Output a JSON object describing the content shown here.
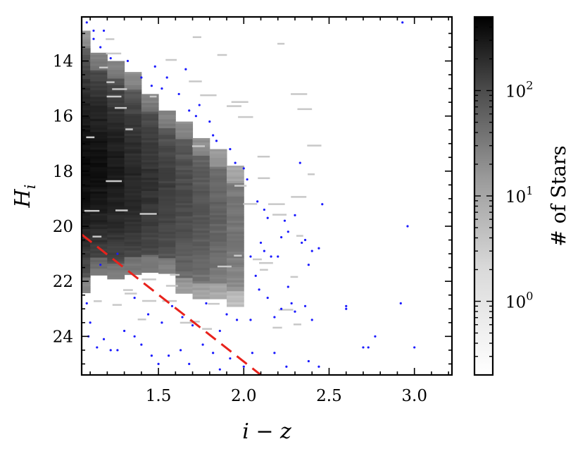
{
  "chart_data": {
    "type": "heatmap",
    "title": "",
    "xlabel": "i − z",
    "ylabel": "H",
    "ylabel_subscript": "i",
    "xlim": [
      1.05,
      3.22
    ],
    "ylim": [
      25.4,
      12.4
    ],
    "y_inverted": true,
    "x_ticks": [
      "1.5",
      "2.0",
      "2.5",
      "3.0"
    ],
    "x_tick_values": [
      1.5,
      2.0,
      2.5,
      3.0
    ],
    "y_ticks": [
      "14",
      "16",
      "18",
      "20",
      "22",
      "24"
    ],
    "y_tick_values": [
      14,
      16,
      18,
      20,
      22,
      24
    ],
    "colormap": "greys",
    "colorbar": {
      "label": "# of Stars",
      "scale": "log",
      "range": [
        0.2,
        500
      ],
      "ticks": [
        {
          "value": 1,
          "base": "10",
          "exp": "0"
        },
        {
          "value": 10,
          "base": "10",
          "exp": "1"
        },
        {
          "value": 100,
          "base": "10",
          "exp": "2"
        }
      ]
    },
    "density_columns": [
      {
        "x0": 1.05,
        "x1": 1.1,
        "ymin": 12.9,
        "ymax": 22.4,
        "peak_y": 17.8,
        "peak": 400
      },
      {
        "x0": 1.1,
        "x1": 1.2,
        "ymin": 13.7,
        "ymax": 21.7,
        "peak_y": 17.8,
        "peak": 320
      },
      {
        "x0": 1.2,
        "x1": 1.3,
        "ymin": 14.0,
        "ymax": 21.9,
        "peak_y": 18.0,
        "peak": 240
      },
      {
        "x0": 1.3,
        "x1": 1.4,
        "ymin": 14.4,
        "ymax": 21.7,
        "peak_y": 18.3,
        "peak": 170
      },
      {
        "x0": 1.4,
        "x1": 1.5,
        "ymin": 15.2,
        "ymax": 21.6,
        "peak_y": 18.5,
        "peak": 120
      },
      {
        "x0": 1.5,
        "x1": 1.6,
        "ymin": 15.8,
        "ymax": 21.7,
        "peak_y": 18.8,
        "peak": 80
      },
      {
        "x0": 1.6,
        "x1": 1.7,
        "ymin": 16.2,
        "ymax": 22.4,
        "peak_y": 19.0,
        "peak": 55
      },
      {
        "x0": 1.7,
        "x1": 1.8,
        "ymin": 16.8,
        "ymax": 22.6,
        "peak_y": 19.3,
        "peak": 38
      },
      {
        "x0": 1.8,
        "x1": 1.9,
        "ymin": 17.2,
        "ymax": 22.6,
        "peak_y": 19.5,
        "peak": 25
      },
      {
        "x0": 1.9,
        "x1": 2.0,
        "ymin": 17.8,
        "ymax": 22.9,
        "peak_y": 19.8,
        "peak": 14
      }
    ],
    "outliers": [
      [
        1.08,
        12.6
      ],
      [
        1.12,
        12.9
      ],
      [
        1.18,
        12.9
      ],
      [
        1.12,
        13.2
      ],
      [
        1.16,
        13.5
      ],
      [
        1.22,
        13.9
      ],
      [
        1.32,
        14.0
      ],
      [
        1.4,
        14.6
      ],
      [
        1.46,
        14.9
      ],
      [
        1.48,
        14.2
      ],
      [
        1.55,
        14.6
      ],
      [
        1.52,
        15.0
      ],
      [
        1.62,
        15.2
      ],
      [
        1.66,
        14.3
      ],
      [
        1.68,
        15.8
      ],
      [
        1.72,
        16.0
      ],
      [
        1.74,
        15.6
      ],
      [
        1.8,
        16.2
      ],
      [
        1.82,
        16.7
      ],
      [
        1.84,
        16.9
      ],
      [
        1.92,
        17.2
      ],
      [
        1.95,
        17.7
      ],
      [
        2.0,
        17.9
      ],
      [
        2.02,
        18.3
      ],
      [
        2.08,
        19.1
      ],
      [
        2.12,
        19.4
      ],
      [
        2.14,
        19.7
      ],
      [
        2.1,
        20.6
      ],
      [
        2.12,
        20.9
      ],
      [
        2.16,
        21.1
      ],
      [
        2.2,
        21.1
      ],
      [
        2.22,
        20.4
      ],
      [
        2.24,
        19.8
      ],
      [
        2.26,
        20.2
      ],
      [
        2.3,
        19.6
      ],
      [
        2.34,
        20.6
      ],
      [
        2.36,
        20.5
      ],
      [
        2.38,
        21.4
      ],
      [
        2.4,
        20.9
      ],
      [
        2.44,
        20.8
      ],
      [
        2.46,
        19.2
      ],
      [
        2.33,
        17.7
      ],
      [
        2.26,
        22.2
      ],
      [
        2.28,
        22.8
      ],
      [
        2.22,
        23.0
      ],
      [
        2.18,
        23.3
      ],
      [
        2.3,
        23.1
      ],
      [
        2.4,
        23.4
      ],
      [
        2.36,
        22.9
      ],
      [
        2.6,
        23.0
      ],
      [
        2.6,
        22.9
      ],
      [
        2.7,
        24.4
      ],
      [
        2.73,
        24.4
      ],
      [
        2.77,
        24.0
      ],
      [
        2.92,
        22.8
      ],
      [
        2.96,
        20.0
      ],
      [
        3.0,
        24.4
      ],
      [
        2.93,
        12.6
      ],
      [
        1.08,
        22.8
      ],
      [
        1.1,
        23.5
      ],
      [
        1.09,
        24.0
      ],
      [
        1.14,
        24.4
      ],
      [
        1.18,
        24.1
      ],
      [
        1.22,
        24.5
      ],
      [
        1.26,
        24.5
      ],
      [
        1.3,
        23.8
      ],
      [
        1.36,
        24.0
      ],
      [
        1.4,
        24.3
      ],
      [
        1.46,
        24.7
      ],
      [
        1.5,
        25.0
      ],
      [
        1.56,
        24.7
      ],
      [
        1.63,
        24.5
      ],
      [
        1.68,
        25.0
      ],
      [
        1.76,
        24.3
      ],
      [
        1.82,
        24.6
      ],
      [
        1.86,
        25.2
      ],
      [
        1.92,
        24.8
      ],
      [
        2.0,
        25.1
      ],
      [
        2.05,
        24.6
      ],
      [
        2.18,
        24.6
      ],
      [
        2.25,
        25.1
      ],
      [
        2.38,
        24.9
      ],
      [
        2.44,
        25.1
      ],
      [
        1.16,
        21.4
      ],
      [
        1.26,
        21.0
      ],
      [
        1.36,
        22.6
      ],
      [
        1.44,
        23.2
      ],
      [
        1.52,
        23.5
      ],
      [
        1.58,
        22.9
      ],
      [
        1.64,
        23.3
      ],
      [
        1.7,
        23.6
      ],
      [
        1.78,
        22.8
      ],
      [
        1.86,
        23.8
      ],
      [
        1.9,
        23.2
      ],
      [
        1.96,
        23.4
      ],
      [
        2.04,
        23.4
      ],
      [
        2.07,
        21.8
      ],
      [
        2.09,
        22.3
      ],
      [
        2.14,
        22.6
      ],
      [
        2.04,
        21.1
      ]
    ],
    "reference_line": {
      "x": [
        1.05,
        2.1
      ],
      "y": [
        20.3,
        25.4
      ],
      "style": "dashed",
      "color": "#e8221c"
    }
  }
}
